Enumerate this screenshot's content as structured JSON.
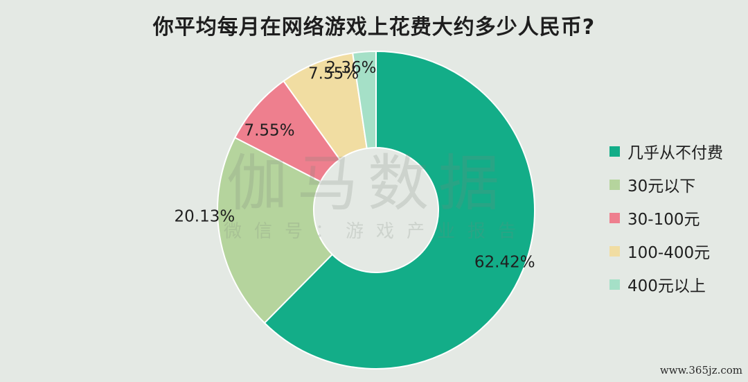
{
  "chart_data": {
    "type": "pie",
    "title": "你平均每月在网络游戏上花费大约多少人民币?",
    "categories": [
      "几乎从不付费",
      "30元以下",
      "30-100元",
      "100-400元",
      "400元以上"
    ],
    "values": [
      62.42,
      20.13,
      7.55,
      7.55,
      2.36
    ],
    "labels": [
      "62.42%",
      "20.13%",
      "7.55%",
      "7.55%",
      "2.36%"
    ],
    "colors": [
      "#13ad88",
      "#b5d49d",
      "#ee7f8e",
      "#f1dda2",
      "#a5e0c7"
    ],
    "donut": true,
    "legend_position": "right"
  },
  "watermark": {
    "main": "伽马数据",
    "sub": "微信号：游戏产业报告"
  },
  "footer": {
    "url": "www.365jz.com"
  }
}
